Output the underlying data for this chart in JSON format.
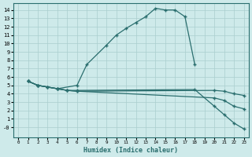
{
  "xlabel": "Humidex (Indice chaleur)",
  "bg_color": "#ceeaea",
  "grid_color": "#aacece",
  "line_color": "#2a6e6e",
  "xlim": [
    -0.5,
    23.5
  ],
  "ylim": [
    -1.2,
    14.8
  ],
  "xticks": [
    0,
    1,
    2,
    3,
    4,
    5,
    6,
    7,
    8,
    9,
    10,
    11,
    12,
    13,
    14,
    15,
    16,
    17,
    18,
    19,
    20,
    21,
    22,
    23
  ],
  "yticks": [
    0,
    1,
    2,
    3,
    4,
    5,
    6,
    7,
    8,
    9,
    10,
    11,
    12,
    13,
    14
  ],
  "ytick_labels": [
    "-0",
    "1",
    "2",
    "3",
    "4",
    "5",
    "6",
    "7",
    "8",
    "9",
    "10",
    "11",
    "12",
    "13",
    "14"
  ],
  "line1_x": [
    1,
    2,
    4,
    6,
    7,
    9,
    10,
    11,
    12,
    13,
    14,
    15,
    16,
    17,
    18
  ],
  "line1_y": [
    5.5,
    5.0,
    4.6,
    5.0,
    7.5,
    9.8,
    11.0,
    11.8,
    12.5,
    13.2,
    14.2,
    14.0,
    14.0,
    13.2,
    7.5
  ],
  "line2_x": [
    1,
    2,
    3,
    4,
    5,
    6,
    18,
    20,
    21,
    22,
    23
  ],
  "line2_y": [
    5.5,
    5.0,
    4.8,
    4.6,
    4.4,
    4.4,
    4.5,
    2.5,
    1.5,
    0.5,
    -0.2
  ],
  "line3_x": [
    1,
    2,
    3,
    4,
    5,
    6,
    20,
    21,
    22,
    23
  ],
  "line3_y": [
    5.5,
    5.0,
    4.8,
    4.6,
    4.4,
    4.3,
    3.5,
    3.2,
    2.5,
    2.2
  ],
  "line4_x": [
    1,
    2,
    3,
    4,
    5,
    6,
    20,
    21,
    22,
    23
  ],
  "line4_y": [
    5.5,
    5.0,
    4.8,
    4.6,
    4.4,
    4.3,
    4.4,
    4.3,
    4.0,
    3.8
  ]
}
